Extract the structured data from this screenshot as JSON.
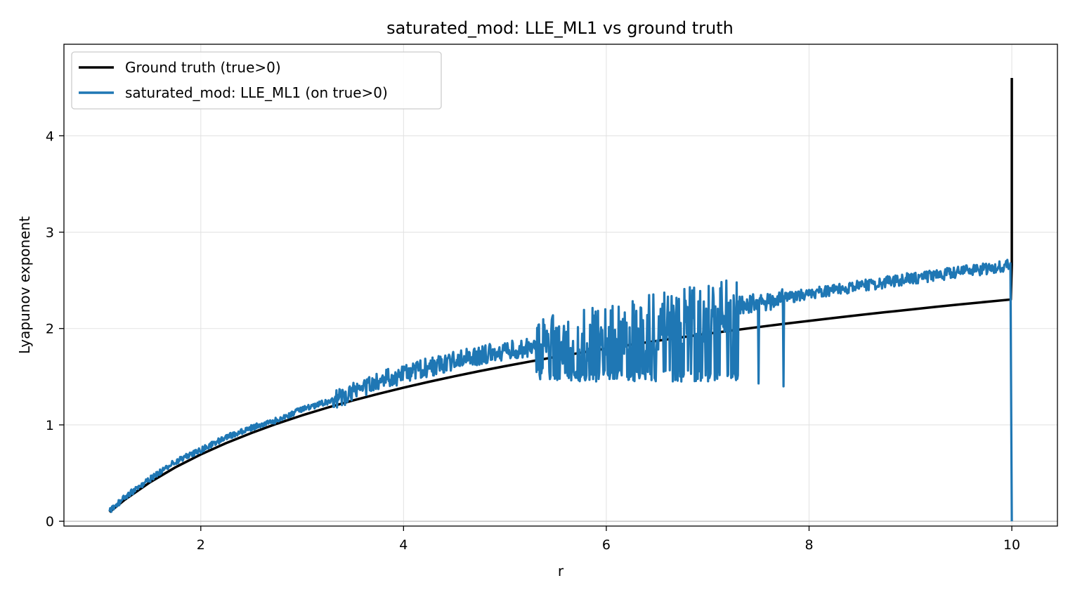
{
  "chart_data": {
    "type": "line",
    "title": "saturated_mod: LLE_ML1 vs ground truth",
    "xlabel": "r",
    "ylabel": "Lyapunov exponent",
    "xlim": [
      0.65,
      10.45
    ],
    "ylim": [
      -0.05,
      4.95
    ],
    "x_ticks": [
      "2",
      "4",
      "6",
      "8",
      "10"
    ],
    "y_ticks": [
      "0",
      "1",
      "2",
      "3",
      "4"
    ],
    "grid": true,
    "legend_position": "upper-left",
    "zero_line": true,
    "series": [
      {
        "name": "Ground truth (true>0)",
        "color": "#000000",
        "x": [
          1.1,
          1.25,
          1.5,
          1.75,
          2.0,
          2.25,
          2.5,
          2.75,
          3.0,
          3.25,
          3.5,
          3.75,
          4.0,
          4.25,
          4.5,
          4.75,
          5.0,
          5.25,
          5.5,
          5.75,
          6.0,
          6.25,
          6.5,
          6.75,
          7.0,
          7.25,
          7.5,
          7.75,
          8.0,
          8.25,
          8.5,
          8.75,
          9.0,
          9.25,
          9.5,
          9.75,
          9.99,
          10.0,
          10.0
        ],
        "y": [
          0.095,
          0.223,
          0.405,
          0.56,
          0.693,
          0.811,
          0.916,
          1.012,
          1.099,
          1.179,
          1.253,
          1.322,
          1.386,
          1.447,
          1.504,
          1.558,
          1.609,
          1.658,
          1.705,
          1.749,
          1.792,
          1.833,
          1.872,
          1.91,
          1.946,
          1.981,
          2.015,
          2.048,
          2.079,
          2.11,
          2.14,
          2.169,
          2.197,
          2.225,
          2.251,
          2.277,
          2.301,
          2.66,
          4.6
        ]
      },
      {
        "name": "saturated_mod: LLE_ML1 (on true>0)",
        "color": "#1f77b4",
        "x": [
          1.1,
          1.25,
          1.5,
          1.75,
          2.0,
          2.25,
          2.5,
          2.75,
          3.0,
          3.25,
          3.4,
          3.5,
          3.75,
          4.0,
          4.25,
          4.5,
          4.75,
          5.0,
          5.25,
          5.5,
          5.75,
          6.0,
          6.25,
          6.5,
          6.75,
          7.0,
          7.25,
          7.5,
          7.75,
          8.0,
          8.25,
          8.5,
          8.75,
          9.0,
          9.25,
          9.5,
          9.75,
          9.99,
          10.0
        ],
        "y": [
          0.1,
          0.25,
          0.44,
          0.62,
          0.74,
          0.87,
          0.97,
          1.05,
          1.16,
          1.24,
          1.29,
          1.36,
          1.45,
          1.53,
          1.6,
          1.66,
          1.72,
          1.77,
          1.8,
          1.86,
          1.92,
          1.97,
          2.02,
          2.07,
          2.12,
          2.17,
          2.22,
          2.27,
          2.31,
          2.36,
          2.4,
          2.44,
          2.48,
          2.52,
          2.55,
          2.59,
          2.62,
          2.66,
          0.0
        ],
        "noise": [
          {
            "r_from": 1.1,
            "r_to": 3.3,
            "amplitude": 0.03
          },
          {
            "r_from": 3.3,
            "r_to": 5.3,
            "amplitude": 0.1
          },
          {
            "r_from": 5.3,
            "r_to": 7.3,
            "amplitude": 0.3,
            "dips_to": 1.45
          },
          {
            "r_from": 7.3,
            "r_to": 7.76,
            "amplitude": 0.1,
            "dips": [
              [
                7.5,
                1.43
              ],
              [
                7.75,
                1.4
              ]
            ]
          },
          {
            "r_from": 7.76,
            "r_to": 9.99,
            "amplitude": 0.06
          }
        ]
      }
    ]
  }
}
